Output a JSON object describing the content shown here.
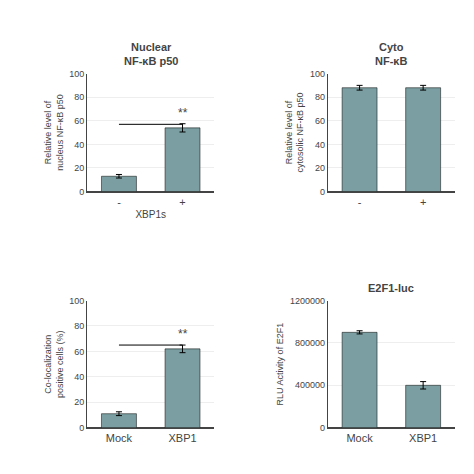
{
  "chart_data": [
    {
      "type": "bar",
      "title": "Nuclear\nNF-κB p50",
      "xlabel": "XBP1s",
      "ylabel": "Relative level of\nnucleus NF-κB p50",
      "categories": [
        "-",
        "+"
      ],
      "values": [
        13,
        54
      ],
      "errors": [
        1.5,
        3.5
      ],
      "color": "#7a9ea1",
      "ylim": [
        0,
        100
      ],
      "yticks": [
        0,
        20,
        40,
        60,
        80,
        100
      ],
      "annotations": [
        {
          "text": "**",
          "x": "+",
          "y": 59,
          "line": {
            "x": [
              "-",
              "+"
            ],
            "y": 57
          }
        }
      ]
    },
    {
      "type": "bar",
      "title": "Cyto\nNF-κB",
      "ylabel": "Relative level of\ncytosolic NF-κB p50",
      "categories": [
        "-",
        "+"
      ],
      "values": [
        88,
        88
      ],
      "errors": [
        2,
        2
      ],
      "color": "#7a9ea1",
      "ylim": [
        0,
        100
      ],
      "yticks": [
        0,
        20,
        40,
        60,
        80,
        100
      ]
    },
    {
      "type": "bar",
      "ylabel": "Co-localization\npositive cells (%)",
      "categories": [
        "Mock",
        "XBP1"
      ],
      "values": [
        11,
        62
      ],
      "errors": [
        1.5,
        3
      ],
      "color": "#7a9ea1",
      "ylim": [
        0,
        100
      ],
      "yticks": [
        0,
        20,
        40,
        60,
        80,
        100
      ],
      "annotations": [
        {
          "text": "**",
          "x": "XBP1",
          "y": 67,
          "line": {
            "x": [
              "Mock",
              "XBP1"
            ],
            "y": 65
          }
        }
      ]
    },
    {
      "type": "bar",
      "title": "E2F1-luc",
      "ylabel": "RLU Activity of E2F1",
      "categories": [
        "Mock",
        "XBP1"
      ],
      "values": [
        900000,
        400000
      ],
      "errors": [
        15000,
        35000
      ],
      "color": "#7a9ea1",
      "ylim": [
        0,
        1200000
      ],
      "yticks": [
        0,
        400000,
        800000,
        1200000
      ]
    }
  ]
}
